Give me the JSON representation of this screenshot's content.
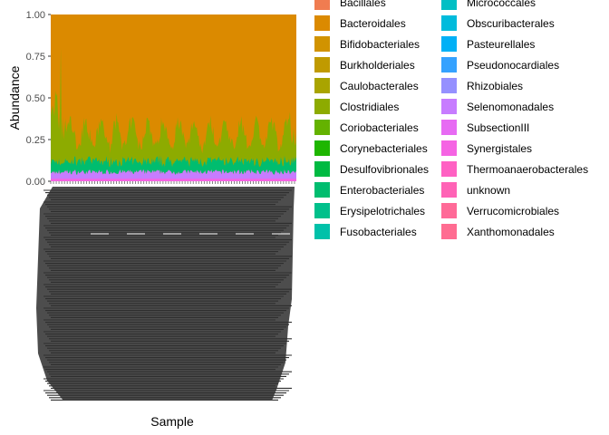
{
  "chart_data": {
    "type": "area",
    "stacked": true,
    "xlabel": "Sample",
    "ylabel": "Abundance",
    "ylim": [
      0,
      1
    ],
    "y_ticks": [
      "0.00",
      "0.25",
      "0.50",
      "0.75",
      "1.00"
    ],
    "x_tick_labels_overplotted": true,
    "legend_position": "right",
    "description_of_profile": "Per-sample relative abundance of bacterial orders; Bacteroidales dominates the upper band.",
    "approx_band_tops": {
      "Synergistales_and_below": 0.07,
      "Enterobacteriales_and_below": 0.12,
      "Clostridiales_and_below": 0.3,
      "Bacteroidales_and_below": 1.0
    },
    "series": [
      {
        "name": "Bacillales",
        "color": "#F07C50"
      },
      {
        "name": "Bacteroidales",
        "color": "#DB8A00"
      },
      {
        "name": "Bifidobacteriales",
        "color": "#D19300"
      },
      {
        "name": "Burkholderiales",
        "color": "#C09A00"
      },
      {
        "name": "Caulobacterales",
        "color": "#A9A400"
      },
      {
        "name": "Clostridiales",
        "color": "#8DAB00"
      },
      {
        "name": "Coriobacteriales",
        "color": "#64B200"
      },
      {
        "name": "Corynebacteriales",
        "color": "#1EB600"
      },
      {
        "name": "Desulfovibrionales",
        "color": "#00BA42"
      },
      {
        "name": "Enterobacteriales",
        "color": "#00BD6F"
      },
      {
        "name": "Erysipelotrichales",
        "color": "#00C08B"
      },
      {
        "name": "Fusobacteriales",
        "color": "#00C1A9"
      },
      {
        "name": "Micrococcales",
        "color": "#00BFC4"
      },
      {
        "name": "Obscuribacterales",
        "color": "#00BBDC"
      },
      {
        "name": "Pasteurellales",
        "color": "#00B0F6"
      },
      {
        "name": "Pseudonocardiales",
        "color": "#35A2FF"
      },
      {
        "name": "Rhizobiales",
        "color": "#9590FF"
      },
      {
        "name": "Selenomonadales",
        "color": "#C77CFF"
      },
      {
        "name": "SubsectionIII",
        "color": "#E76BF3"
      },
      {
        "name": "Synergistales",
        "color": "#F564E3"
      },
      {
        "name": "Thermoanaerobacterales",
        "color": "#FF61C3"
      },
      {
        "name": "unknown",
        "color": "#FF63B6"
      },
      {
        "name": "Verrucomicrobiales",
        "color": "#FF6A98"
      },
      {
        "name": "Xanthomonadales",
        "color": "#FF6C91"
      }
    ]
  }
}
